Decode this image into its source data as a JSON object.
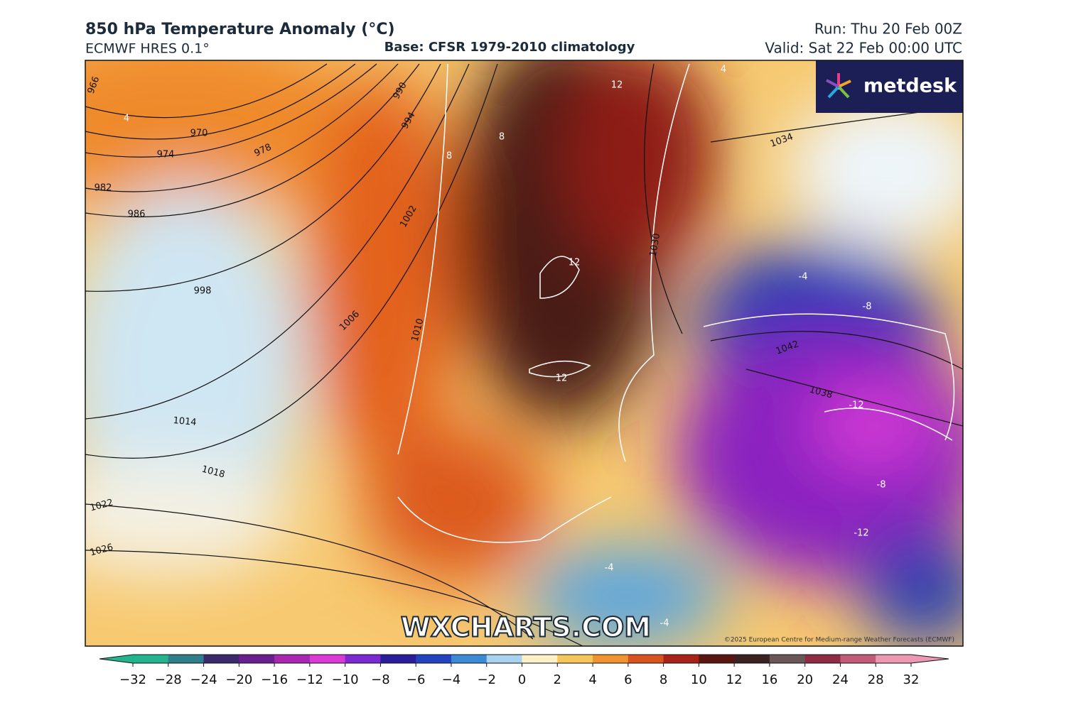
{
  "header": {
    "title": "850 hPa Temperature Anomaly (°C)",
    "model": "ECMWF HRES 0.1°",
    "base": "Base: CFSR 1979-2010 climatology",
    "run": "Run: Thu 20 Feb 00Z",
    "valid": "Valid: Sat 22 Feb 00:00 UTC"
  },
  "logo": "metdesk",
  "watermark": "WXCHARTS.COM",
  "copyright": "©2025 European Centre for Medium-range Weather Forecasts (ECMWF)",
  "contour_labels": [
    "966",
    "970",
    "974",
    "978",
    "982",
    "986",
    "990",
    "994",
    "998",
    "1002",
    "1006",
    "1010",
    "1014",
    "1018",
    "1022",
    "1026",
    "1030",
    "1034",
    "1038",
    "1042",
    "12",
    "8",
    "8",
    "12",
    "12",
    "-4",
    "-8",
    "-12",
    "-8",
    "-12",
    "-4",
    "-4",
    "4",
    "4"
  ],
  "colorbar": {
    "ticks": [
      {
        "value": -32,
        "label": "−32"
      },
      {
        "value": -28,
        "label": "−28"
      },
      {
        "value": -24,
        "label": "−24"
      },
      {
        "value": -20,
        "label": "−20"
      },
      {
        "value": -16,
        "label": "−16"
      },
      {
        "value": -12,
        "label": "−12"
      },
      {
        "value": -10,
        "label": "−10"
      },
      {
        "value": -8,
        "label": "−8"
      },
      {
        "value": -6,
        "label": "−6"
      },
      {
        "value": -4,
        "label": "−4"
      },
      {
        "value": -2,
        "label": "−2"
      },
      0,
      2,
      4,
      6,
      8,
      10,
      12,
      16,
      20,
      24,
      28,
      32
    ],
    "colors": [
      "#22b58d",
      "#2e7f8a",
      "#3b2a6a",
      "#6a1f8f",
      "#a826b0",
      "#d93ad6",
      "#7a2ad0",
      "#2a1d9a",
      "#2244c0",
      "#3b8ad6",
      "#a8d2ee",
      "#fbf1c8",
      "#f6c65a",
      "#f0922f",
      "#d9531f",
      "#a8221a",
      "#5a1712",
      "#3a2320",
      "#6a5656",
      "#8e2c44",
      "#c25a7a",
      "#eb98b2"
    ]
  }
}
